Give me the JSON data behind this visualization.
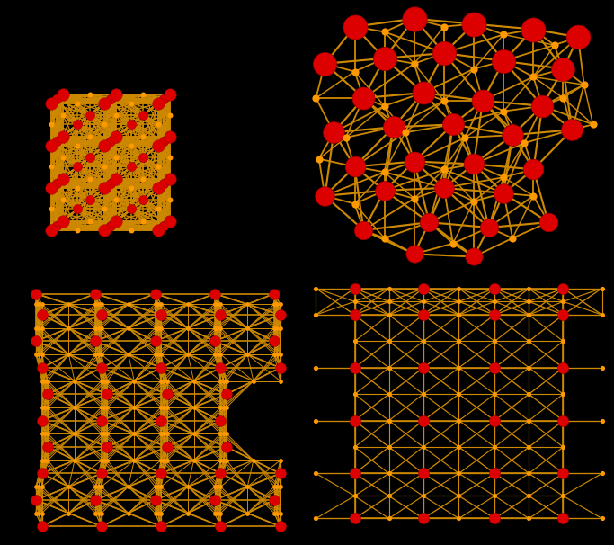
{
  "background_color": "#000000",
  "fe_color": "#dd0000",
  "c_color": "#ff9900",
  "bond_color": "#cc8800",
  "linewidth": 1.2
}
